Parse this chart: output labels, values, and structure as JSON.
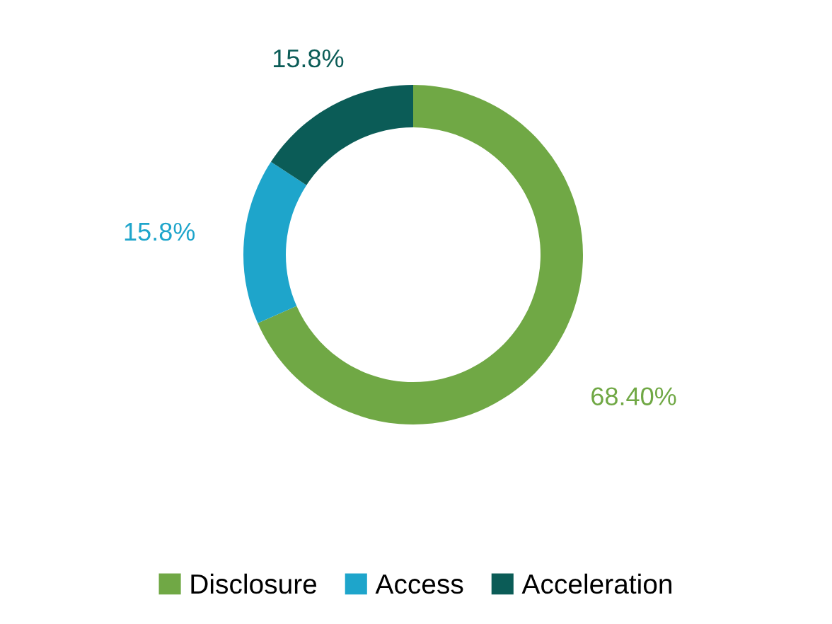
{
  "chart_data": {
    "type": "donut",
    "categories": [
      "Disclosure",
      "Access",
      "Acceleration"
    ],
    "values": [
      68.4,
      15.8,
      15.8
    ],
    "colors": [
      "#70a845",
      "#1ea5cb",
      "#0b5c57"
    ],
    "value_labels": [
      "68.40%",
      "15.8%",
      "15.8%"
    ],
    "legend": "bottom"
  }
}
